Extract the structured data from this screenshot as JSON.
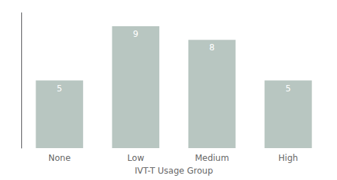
{
  "chart_data": {
    "type": "bar",
    "categories": [
      "None",
      "Low",
      "Medium",
      "High"
    ],
    "values": [
      5,
      9,
      8,
      5
    ],
    "color": "#b8c6c1",
    "xlabel": "IVT-T Usage Group",
    "ylim": [
      0,
      10.0
    ],
    "grid": false,
    "data_labels": true,
    "tick_labels": "x"
  }
}
